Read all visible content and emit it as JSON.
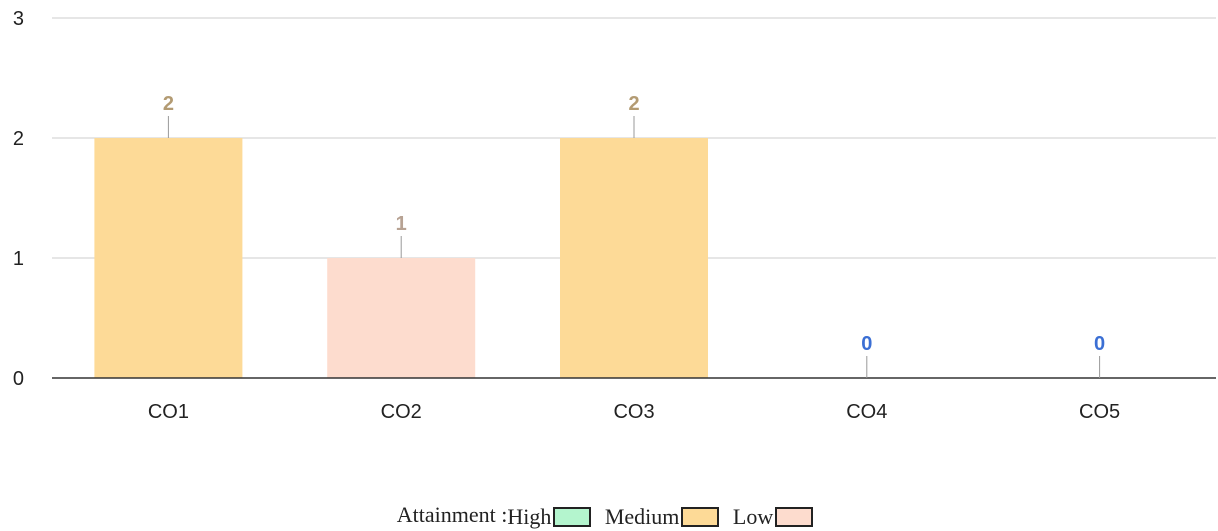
{
  "chart_data": {
    "type": "bar",
    "categories": [
      "CO1",
      "CO2",
      "CO3",
      "CO4",
      "CO5"
    ],
    "values": [
      2,
      1,
      2,
      0,
      0
    ],
    "data_labels": [
      "2",
      "1",
      "2",
      "0",
      "0"
    ],
    "bar_colors": [
      "#fdda97",
      "#fddcce",
      "#fdda97",
      "#fdda97",
      "#fdda97"
    ],
    "label_colors": [
      "#b39b73",
      "#b7a293",
      "#b39b73",
      "#3b6fd4",
      "#3b6fd4"
    ],
    "ylim": [
      0,
      3
    ],
    "yticks": [
      0,
      1,
      2,
      3
    ],
    "title": "",
    "xlabel": "",
    "ylabel": "",
    "grid": true,
    "legend_position": "bottom-center"
  },
  "legend": {
    "prefix": "Attainment :",
    "items": [
      {
        "label": "High",
        "color": "#b4f5ce"
      },
      {
        "label": "Medium",
        "color": "#fdda97"
      },
      {
        "label": "Low",
        "color": "#fddcce"
      }
    ]
  }
}
